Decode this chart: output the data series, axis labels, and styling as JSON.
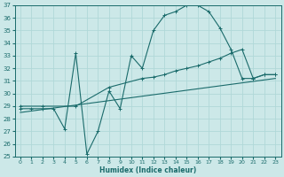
{
  "xlabel": "Humidex (Indice chaleur)",
  "xlim": [
    -0.5,
    23.5
  ],
  "ylim": [
    25,
    37
  ],
  "xticks": [
    0,
    1,
    2,
    3,
    4,
    5,
    6,
    7,
    8,
    9,
    10,
    11,
    12,
    13,
    14,
    15,
    16,
    17,
    18,
    19,
    20,
    21,
    22,
    23
  ],
  "yticks": [
    25,
    26,
    27,
    28,
    29,
    30,
    31,
    32,
    33,
    34,
    35,
    36,
    37
  ],
  "bg_color": "#cce8e8",
  "line_color": "#1a6b6b",
  "grid_color": "#b0d8d8",
  "line1_x": [
    0,
    1,
    2,
    3,
    4,
    5,
    6,
    7,
    8,
    9,
    10,
    11,
    12,
    13,
    14,
    15,
    16,
    17,
    18,
    19,
    20,
    21,
    22,
    23
  ],
  "line1_y": [
    28.8,
    28.8,
    28.8,
    28.8,
    27.2,
    33.2,
    25.2,
    27.0,
    30.2,
    28.8,
    33.0,
    32.0,
    35.0,
    36.2,
    36.5,
    37.0,
    37.0,
    36.5,
    35.2,
    33.5,
    31.2,
    31.2,
    31.5,
    31.5
  ],
  "line2_x": [
    0,
    2,
    5,
    8,
    11,
    12,
    13,
    14,
    15,
    16,
    17,
    18,
    19,
    20,
    21,
    22,
    23
  ],
  "line2_y": [
    29.0,
    29.0,
    29.0,
    30.5,
    31.2,
    31.3,
    31.5,
    31.8,
    32.0,
    32.2,
    32.5,
    32.8,
    33.2,
    33.5,
    31.2,
    31.5,
    31.5
  ],
  "line3_x": [
    0,
    23
  ],
  "line3_y": [
    28.5,
    31.2
  ]
}
